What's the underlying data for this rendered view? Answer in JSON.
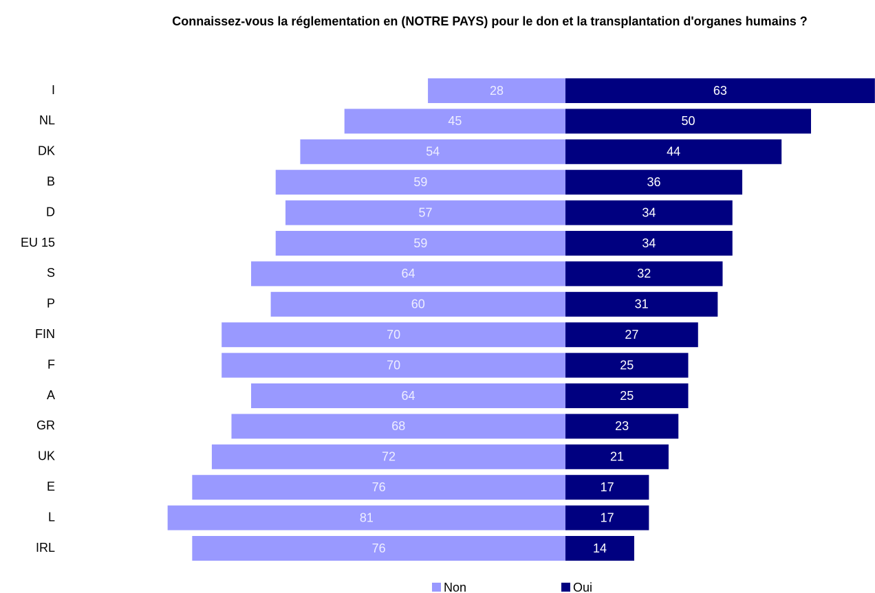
{
  "chart_data": {
    "type": "diverging_bar",
    "title": "Connaissez-vous la réglementation en (NOTRE PAYS) pour le don et la transplantation d'organes humains ?",
    "categories": [
      "I",
      "NL",
      "DK",
      "B",
      "D",
      "EU 15",
      "S",
      "P",
      "FIN",
      "F",
      "A",
      "GR",
      "UK",
      "E",
      "L",
      "IRL"
    ],
    "series": [
      {
        "name": "Non",
        "color": "#9999ff",
        "values": [
          28,
          45,
          54,
          59,
          57,
          59,
          64,
          60,
          70,
          70,
          64,
          68,
          72,
          76,
          81,
          76
        ]
      },
      {
        "name": "Oui",
        "color": "#000080",
        "values": [
          63,
          50,
          44,
          36,
          34,
          34,
          32,
          31,
          27,
          25,
          25,
          23,
          21,
          17,
          17,
          14
        ]
      }
    ]
  }
}
